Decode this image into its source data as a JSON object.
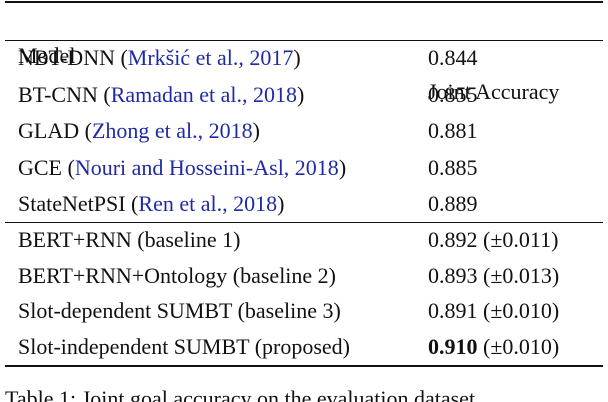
{
  "table": {
    "columns": [
      "Model",
      "Joint Accuracy"
    ],
    "groups": [
      [
        {
          "model": [
            "NBT-DNN (",
            "Mrkšić et al., 2017",
            ")"
          ],
          "accuracy": [
            "0.844"
          ]
        },
        {
          "model": [
            "BT-CNN (",
            "Ramadan et al., 2018",
            ")"
          ],
          "accuracy": [
            "0.855"
          ]
        },
        {
          "model": [
            "GLAD (",
            "Zhong et al., 2018",
            ")"
          ],
          "accuracy": [
            "0.881"
          ]
        },
        {
          "model": [
            "GCE (",
            "Nouri and Hosseini-Asl, 2018",
            ")"
          ],
          "accuracy": [
            "0.885"
          ]
        },
        {
          "model": [
            "StateNetPSI (",
            "Ren et al., 2018",
            ")"
          ],
          "accuracy": [
            "0.889"
          ]
        }
      ],
      [
        {
          "model": [
            "BERT+RNN (baseline 1)"
          ],
          "accuracy": [
            "0.892 (±0.011)"
          ]
        },
        {
          "model": [
            "BERT+RNN+Ontology (baseline 2)"
          ],
          "accuracy": [
            "0.893 (±0.013)"
          ]
        },
        {
          "model": [
            "Slot-dependent SUMBT (baseline 3)"
          ],
          "accuracy": [
            "0.891 (±0.010)"
          ]
        },
        {
          "model": [
            "Slot-independent SUMBT (proposed)"
          ],
          "accuracy": [
            "0.910",
            " (±0.010)"
          ],
          "bold": true
        }
      ]
    ]
  },
  "caption": "Table 1: Joint goal accuracy on the evaluation dataset"
}
